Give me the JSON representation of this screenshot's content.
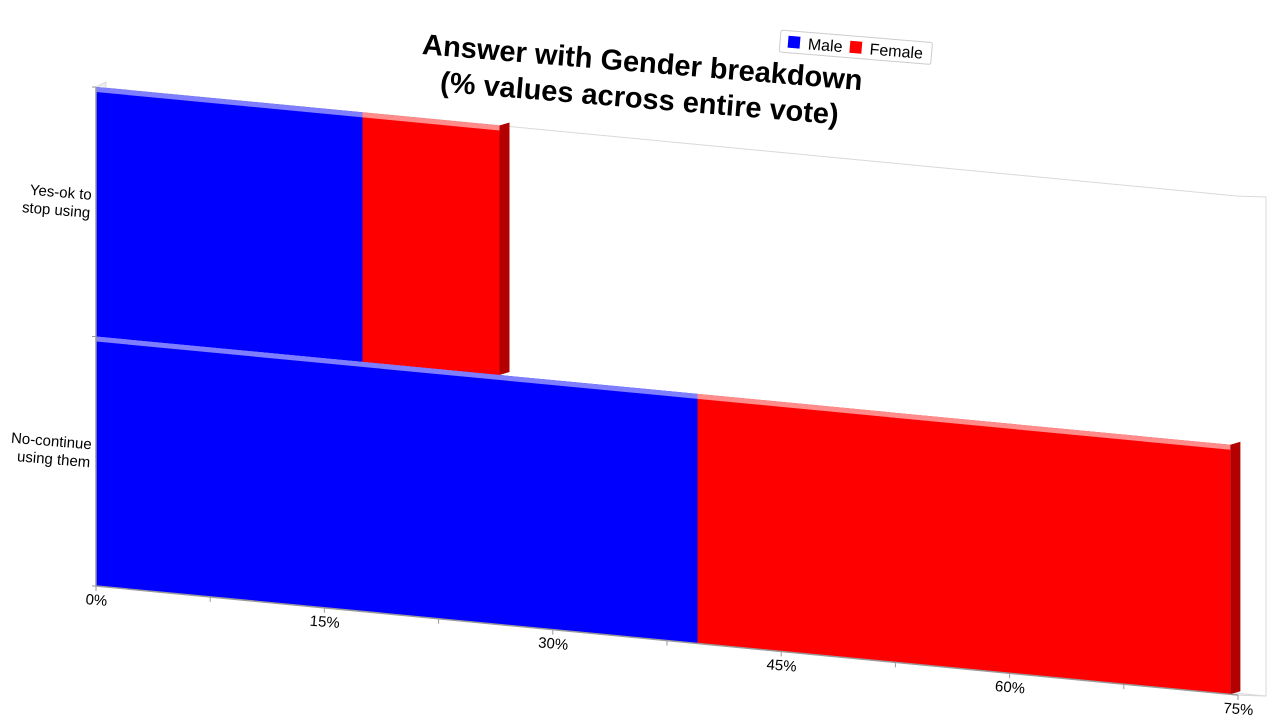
{
  "chart_data": {
    "type": "bar",
    "orientation": "horizontal",
    "stacked": true,
    "style": "3d-perspective",
    "title": "Answer with Gender breakdown",
    "subtitle": "(% values across entire vote)",
    "categories": [
      "Yes-ok to stop using",
      "No-continue using them"
    ],
    "category_lines": [
      [
        "Yes-ok to",
        "stop using"
      ],
      [
        "No-continue",
        "using them"
      ]
    ],
    "series": [
      {
        "name": "Male",
        "values": [
          17.5,
          39.5
        ]
      },
      {
        "name": "Female",
        "values": [
          9.0,
          35.0
        ]
      }
    ],
    "xlim": [
      0,
      75
    ],
    "xticks": [
      0,
      15,
      30,
      45,
      60,
      75
    ],
    "xtick_labels": [
      "0%",
      "15%",
      "30%",
      "45%",
      "60%",
      "75%"
    ],
    "xlabel": "",
    "ylabel": "",
    "grid": false,
    "legend_position": "top-right"
  },
  "colors": {
    "male": "#0000ff",
    "male_top": "#8c8cff",
    "female": "#ff0000",
    "female_top": "#ff9a9a",
    "female_side": "#b30000",
    "axis": "#999999",
    "frame": "#d9d9d9"
  }
}
